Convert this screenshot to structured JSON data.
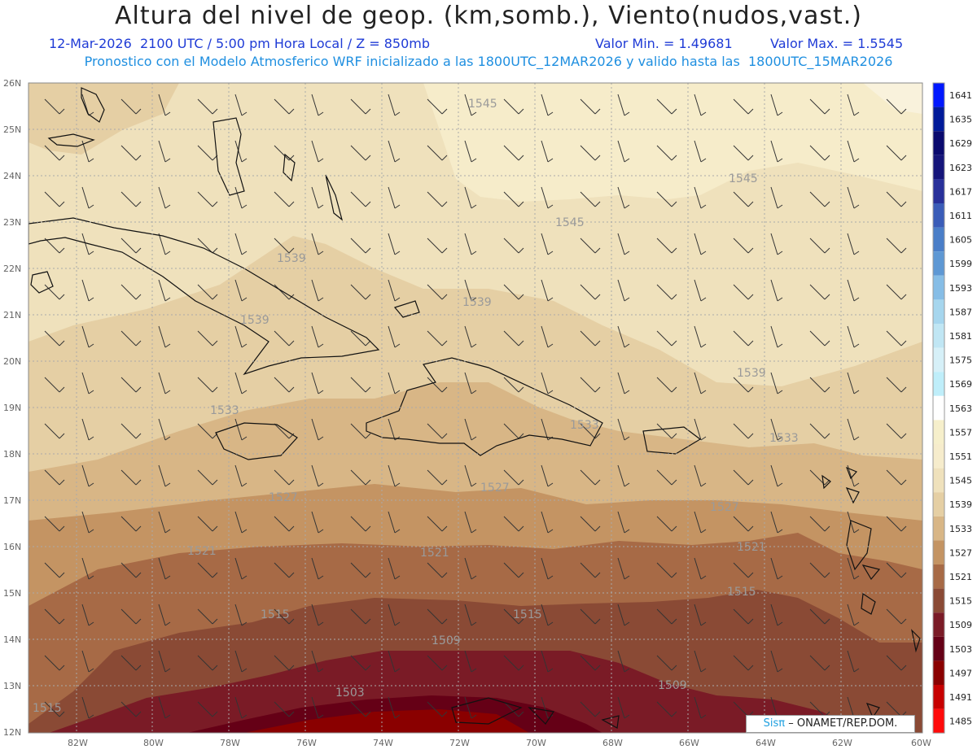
{
  "header": {
    "title": "Altura del nivel de geop. (km,somb.), Viento(nudos,vast.)",
    "datetime": "12-Mar-2026  2100 UTC / 5:00 pm Hora Local / Z = 850mb",
    "min": "Valor Min. = 1.49681",
    "max": "Valor Max. = 1.5545",
    "model_line": "Pronostico con el Modelo Atmosferico WRF inicializado a las 1800UTC_12MAR2026 y valido hasta las  1800UTC_15MAR2026"
  },
  "axes": {
    "lat_labels": [
      "26N",
      "25N",
      "24N",
      "23N",
      "22N",
      "21N",
      "20N",
      "19N",
      "18N",
      "17N",
      "16N",
      "15N",
      "14N",
      "13N",
      "12N"
    ],
    "lon_labels": [
      "82W",
      "80W",
      "78W",
      "76W",
      "74W",
      "72W",
      "70W",
      "68W",
      "66W",
      "64W",
      "62W",
      "60W"
    ]
  },
  "contour_labels": [
    "1545",
    "1545",
    "1545",
    "1539",
    "1539",
    "1539",
    "1539",
    "1533",
    "1533",
    "1533",
    "1527",
    "1527",
    "1527",
    "1521",
    "1521",
    "1521",
    "1515",
    "1515",
    "1515",
    "1515",
    "1509",
    "1509",
    "1503"
  ],
  "colorbar": {
    "labels": [
      "1641",
      "1635",
      "1629",
      "1623",
      "1617",
      "1611",
      "1605",
      "1599",
      "1593",
      "1587",
      "1581",
      "1575",
      "1569",
      "1563",
      "1557",
      "1551",
      "1545",
      "1539",
      "1533",
      "1527",
      "1521",
      "1515",
      "1509",
      "1503",
      "1497",
      "1491",
      "1485"
    ],
    "colors": [
      "#0018ff",
      "#001a99",
      "#0a0a6e",
      "#15157a",
      "#28309a",
      "#3a5cb8",
      "#4a7ec8",
      "#5e98d4",
      "#86bde6",
      "#a6d6ee",
      "#c0e6f4",
      "#d6f0f8",
      "#bfeefa",
      "#ffffff",
      "#f6efcb",
      "#f6eccc",
      "#efe1bc",
      "#e5cfa4",
      "#d8b686",
      "#c49463",
      "#a76a46",
      "#8a4a35",
      "#7a1b26",
      "#650016",
      "#8a0000",
      "#c70000",
      "#ff0a0a"
    ]
  },
  "credit": {
    "brand": "Sisπ",
    "org": "– ONAMET/REP.DOM."
  }
}
